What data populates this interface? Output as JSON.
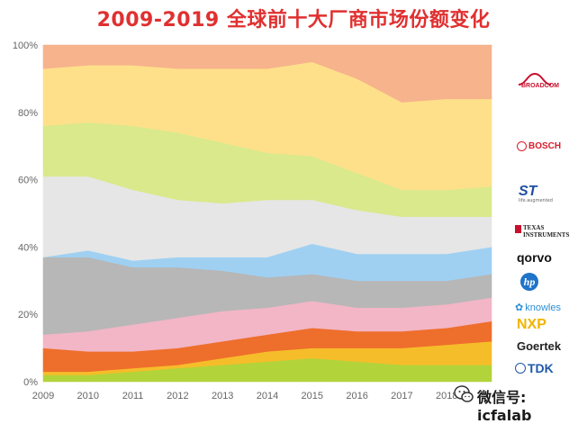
{
  "title": "2009-2019 全球前十大厂商市场份额变化",
  "title_color": "#e03030",
  "chart_data": {
    "type": "area",
    "stacked": true,
    "x": [
      "2009",
      "2010",
      "2011",
      "2012",
      "2013",
      "2014",
      "2015",
      "2016",
      "2017",
      "2018",
      "2019"
    ],
    "x_tick_labels": [
      "2009",
      "2010",
      "2011",
      "2012",
      "2013",
      "2014",
      "2015",
      "2016",
      "2017",
      "2018"
    ],
    "xlabel": "",
    "ylabel": "",
    "ylim": [
      0,
      100
    ],
    "y_ticks": [
      "0%",
      "20%",
      "40%",
      "60%",
      "80%",
      "100%"
    ],
    "grid": false,
    "legend_position": "right",
    "series": [
      {
        "name": "TDK",
        "color": "#b3d33a",
        "values": [
          2,
          2,
          3,
          4,
          5,
          6,
          7,
          6,
          5,
          5,
          5
        ]
      },
      {
        "name": "Goertek",
        "color": "#f6bd2a",
        "values": [
          1,
          1,
          1,
          1,
          2,
          3,
          3,
          4,
          5,
          6,
          7
        ]
      },
      {
        "name": "NXP",
        "color": "#ee6e2c",
        "values": [
          7,
          6,
          5,
          5,
          5,
          5,
          6,
          5,
          5,
          5,
          6
        ]
      },
      {
        "name": "knowles",
        "color": "#f2b6c6",
        "values": [
          4,
          6,
          8,
          9,
          9,
          8,
          8,
          7,
          7,
          7,
          7
        ]
      },
      {
        "name": "hp",
        "color": "#b7b7b7",
        "values": [
          23,
          22,
          17,
          15,
          12,
          9,
          8,
          8,
          8,
          7,
          7
        ]
      },
      {
        "name": "qorvo",
        "color": "#9fd0f2",
        "values": [
          0,
          2,
          2,
          3,
          4,
          6,
          9,
          8,
          8,
          8,
          8
        ]
      },
      {
        "name": "Texas Instruments",
        "color": "#e6e6e6",
        "values": [
          24,
          22,
          21,
          17,
          16,
          17,
          13,
          13,
          11,
          11,
          9
        ]
      },
      {
        "name": "ST",
        "color": "#d9e98c",
        "values": [
          15,
          16,
          19,
          20,
          18,
          14,
          13,
          11,
          8,
          8,
          9
        ]
      },
      {
        "name": "BOSCH",
        "color": "#ffe08a",
        "values": [
          17,
          17,
          18,
          19,
          22,
          25,
          28,
          28,
          26,
          27,
          26
        ]
      },
      {
        "name": "BROADCOM",
        "color": "#f6b38c",
        "values": [
          7,
          6,
          6,
          7,
          7,
          7,
          5,
          10,
          17,
          16,
          16
        ]
      }
    ]
  },
  "legend": [
    {
      "key": "broadcom",
      "label": "BROADCOM",
      "color": "#c8102e"
    },
    {
      "key": "bosch",
      "label": "BOSCH",
      "color": "#d81e2c"
    },
    {
      "key": "st",
      "label": "ST",
      "color": "#1f4fa0",
      "sublabel": "life.augmented"
    },
    {
      "key": "ti",
      "label": "Texas Instruments",
      "line1": "TEXAS",
      "line2": "INSTRUMENTS",
      "color": "#222222"
    },
    {
      "key": "qorvo",
      "label": "qorvo",
      "color": "#111111"
    },
    {
      "key": "hp",
      "label": "hp",
      "color": "#1f73c8"
    },
    {
      "key": "knowles",
      "label": "knowles",
      "color": "#2a8fd6"
    },
    {
      "key": "nxp",
      "label": "NXP",
      "color": "#f0b400"
    },
    {
      "key": "goertek",
      "label": "Goertek",
      "color": "#222222"
    },
    {
      "key": "tdk",
      "label": "TDK",
      "color": "#1f5aa8"
    }
  ],
  "watermark": {
    "text": "微信号: icfalab"
  }
}
